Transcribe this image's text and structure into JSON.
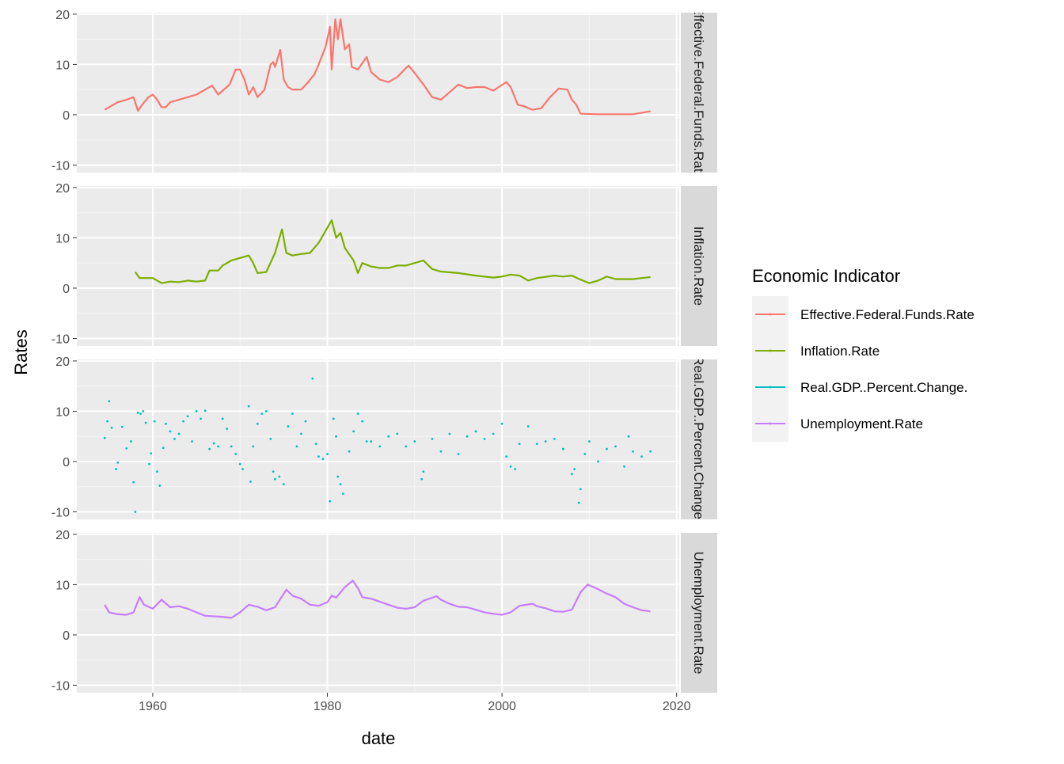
{
  "chart_data": {
    "type": "line",
    "x_label": "date",
    "y_label": "Rates",
    "legend_title": "Economic Indicator",
    "xlim": [
      1951.3,
      2020.3
    ],
    "xticks": [
      1960,
      1980,
      2000,
      2020
    ],
    "xminor": [
      1970,
      1990,
      2010
    ],
    "ylim": [
      -11.5,
      20.3
    ],
    "yticks": [
      -10,
      0,
      10,
      20
    ],
    "yminor": [
      -5,
      5,
      15
    ],
    "grid": true,
    "series": [
      {
        "name": "Effective.Federal.Funds.Rate",
        "type": "line",
        "color": "#f8766d",
        "x": [
          1954.5,
          1955,
          1955.5,
          1956,
          1957,
          1957.8,
          1958.3,
          1958.8,
          1959.5,
          1960,
          1960.5,
          1961,
          1961.5,
          1962,
          1963,
          1964,
          1965,
          1966,
          1966.8,
          1967.5,
          1968,
          1968.8,
          1969.5,
          1970,
          1970.5,
          1971,
          1971.5,
          1972,
          1972.8,
          1973.5,
          1973.8,
          1974,
          1974.6,
          1975,
          1975.5,
          1976,
          1977,
          1977.8,
          1978.5,
          1979,
          1979.8,
          1980.3,
          1980.5,
          1980.9,
          1981.2,
          1981.5,
          1982,
          1982.5,
          1982.8,
          1983.5,
          1984.5,
          1985,
          1986,
          1987,
          1988,
          1989.3,
          1990,
          1991,
          1992,
          1993,
          1994,
          1995,
          1996,
          1997,
          1998,
          1999,
          2000.5,
          2001,
          2001.8,
          2002.5,
          2003.5,
          2004.5,
          2005.5,
          2006.5,
          2007.5,
          2008,
          2008.5,
          2009,
          2011,
          2013,
          2015,
          2016,
          2017
        ],
        "values": [
          1.0,
          1.5,
          2.0,
          2.5,
          3.0,
          3.5,
          0.8,
          2.0,
          3.5,
          4.0,
          3.0,
          1.5,
          1.5,
          2.5,
          3.0,
          3.5,
          4.0,
          5.0,
          5.8,
          4.0,
          4.8,
          6.0,
          9.0,
          9.0,
          7.0,
          4.0,
          5.5,
          3.5,
          5.0,
          10.0,
          10.5,
          9.5,
          12.9,
          7.0,
          5.5,
          5.0,
          5.0,
          6.5,
          8.0,
          10.0,
          13.5,
          17.5,
          9.0,
          19.0,
          15.0,
          19.0,
          13.0,
          14.0,
          9.5,
          9.0,
          11.5,
          8.5,
          7.0,
          6.5,
          7.5,
          9.8,
          8.3,
          6.0,
          3.5,
          3.0,
          4.5,
          6.0,
          5.3,
          5.5,
          5.5,
          4.8,
          6.5,
          5.5,
          2.0,
          1.7,
          1.0,
          1.3,
          3.5,
          5.2,
          5.0,
          3.0,
          2.0,
          0.2,
          0.1,
          0.1,
          0.1,
          0.4,
          0.7
        ]
      },
      {
        "name": "Inflation.Rate",
        "type": "line",
        "color": "#7cae00",
        "x": [
          1958,
          1958.5,
          1959,
          1960,
          1961,
          1962,
          1963,
          1964,
          1965,
          1966,
          1966.5,
          1967.5,
          1968,
          1969,
          1970,
          1971,
          1971.5,
          1972,
          1973,
          1974,
          1974.8,
          1975.3,
          1976,
          1977,
          1978,
          1979,
          1980,
          1980.5,
          1981,
          1981.5,
          1982,
          1983,
          1983.5,
          1984,
          1985,
          1986,
          1987,
          1988,
          1989,
          1990,
          1991,
          1992,
          1993,
          1995,
          1997,
          1999,
          2000,
          2001,
          2002,
          2003,
          2004,
          2006,
          2007,
          2008,
          2009,
          2010,
          2011,
          2012,
          2013,
          2014,
          2015,
          2016,
          2017
        ],
        "values": [
          3.2,
          2.0,
          2.0,
          2.0,
          1.0,
          1.3,
          1.2,
          1.5,
          1.3,
          1.5,
          3.5,
          3.5,
          4.5,
          5.5,
          6.0,
          6.5,
          5.0,
          3.0,
          3.2,
          7.0,
          11.7,
          7.0,
          6.5,
          6.8,
          7.0,
          9.0,
          12.0,
          13.5,
          10.0,
          11.0,
          8.0,
          5.5,
          3.0,
          5.0,
          4.3,
          4.0,
          4.0,
          4.5,
          4.5,
          5.0,
          5.5,
          3.8,
          3.3,
          3.0,
          2.5,
          2.1,
          2.3,
          2.7,
          2.5,
          1.5,
          2.0,
          2.5,
          2.3,
          2.5,
          1.7,
          1.0,
          1.5,
          2.3,
          1.8,
          1.8,
          1.8,
          2.0,
          2.2
        ]
      },
      {
        "name": "Real.GDP..Percent.Change.",
        "type": "scatter",
        "color": "#00bfc4",
        "x": [
          1954.5,
          1954.8,
          1955,
          1955.3,
          1955.8,
          1956,
          1956.5,
          1957,
          1957.5,
          1957.8,
          1958,
          1958.3,
          1958.6,
          1958.9,
          1959.2,
          1959.6,
          1959.8,
          1960.2,
          1960.5,
          1960.8,
          1961.2,
          1961.5,
          1962,
          1962.5,
          1963,
          1963.5,
          1964,
          1964.5,
          1965,
          1965.5,
          1966,
          1966.5,
          1967,
          1967.5,
          1968,
          1968.5,
          1969,
          1969.5,
          1970,
          1970.3,
          1971,
          1971.2,
          1971.5,
          1972,
          1972.5,
          1973,
          1973.5,
          1973.8,
          1974,
          1974.5,
          1975,
          1975.5,
          1976,
          1976.5,
          1977,
          1977.5,
          1978.3,
          1978.7,
          1979,
          1979.5,
          1980,
          1980.3,
          1980.7,
          1981,
          1981.2,
          1981.5,
          1981.8,
          1982.5,
          1983,
          1983.5,
          1984,
          1984.5,
          1985,
          1986,
          1987,
          1988,
          1989,
          1990,
          1990.8,
          1991,
          1992,
          1993,
          1994,
          1995,
          1996,
          1997,
          1998,
          1999,
          2000,
          2000.5,
          2001,
          2001.5,
          2002,
          2003,
          2004,
          2005,
          2006,
          2007,
          2008,
          2008.3,
          2008.8,
          2009,
          2009.5,
          2010,
          2011,
          2012,
          2013,
          2014,
          2014.5,
          2015,
          2016,
          2017
        ],
        "values": [
          4.7,
          8.0,
          12.0,
          6.7,
          -1.5,
          -0.2,
          6.9,
          2.6,
          4.0,
          -4.1,
          -10.0,
          9.7,
          9.5,
          10.0,
          7.7,
          -0.5,
          1.6,
          8.0,
          -2.0,
          -4.8,
          2.7,
          7.5,
          6.0,
          4.5,
          5.5,
          8.0,
          9.0,
          4.0,
          10.0,
          8.5,
          10.1,
          2.5,
          3.6,
          3.0,
          8.5,
          6.5,
          3.0,
          1.5,
          -0.5,
          -1.5,
          11.0,
          -4.0,
          3.0,
          7.5,
          9.5,
          10.0,
          4.5,
          -2.0,
          -3.5,
          -3.0,
          -4.5,
          7.0,
          9.5,
          3.0,
          5.5,
          8.0,
          16.5,
          3.5,
          1.0,
          0.5,
          1.5,
          -7.9,
          8.5,
          5.0,
          -3.0,
          -4.5,
          -6.4,
          2.0,
          6.0,
          9.5,
          8.0,
          4.0,
          4.0,
          3.0,
          5.0,
          5.5,
          3.0,
          4.0,
          -3.5,
          -2.0,
          4.5,
          2.0,
          5.5,
          1.5,
          5.0,
          6.0,
          4.5,
          5.5,
          7.5,
          1.0,
          -1.0,
          -1.5,
          3.5,
          7.0,
          3.5,
          4.0,
          4.5,
          2.5,
          -2.5,
          -1.5,
          -8.2,
          -5.5,
          1.5,
          4.0,
          0.0,
          2.5,
          3.0,
          -1.0,
          5.0,
          2.0,
          1.0,
          2.0
        ]
      },
      {
        "name": "Unemployment.Rate",
        "type": "line",
        "color": "#c77cff",
        "x": [
          1954.5,
          1955,
          1956,
          1957,
          1957.8,
          1958.5,
          1959,
          1960,
          1961,
          1962,
          1963,
          1964,
          1965,
          1966,
          1968,
          1969,
          1970,
          1971,
          1972,
          1973,
          1974,
          1975.3,
          1976,
          1977,
          1978,
          1979,
          1980,
          1980.5,
          1981,
          1982,
          1982.9,
          1983.5,
          1984,
          1985,
          1987,
          1988,
          1989,
          1990,
          1991,
          1992.5,
          1993,
          1994,
          1995,
          1996,
          1997,
          1998,
          1999,
          2000,
          2001,
          2002,
          2003.5,
          2004,
          2005,
          2006,
          2007,
          2008,
          2009,
          2009.8,
          2010.5,
          2011,
          2012,
          2013,
          2014,
          2015,
          2016,
          2017
        ],
        "values": [
          6.0,
          4.5,
          4.1,
          4.0,
          4.5,
          7.5,
          6.0,
          5.2,
          7.0,
          5.5,
          5.7,
          5.2,
          4.5,
          3.8,
          3.6,
          3.4,
          4.5,
          6.0,
          5.6,
          4.9,
          5.5,
          9.0,
          7.8,
          7.2,
          6.0,
          5.8,
          6.5,
          7.8,
          7.4,
          9.5,
          10.8,
          9.3,
          7.5,
          7.2,
          6.0,
          5.4,
          5.2,
          5.5,
          6.8,
          7.7,
          7.0,
          6.2,
          5.6,
          5.5,
          5.0,
          4.5,
          4.2,
          4.0,
          4.5,
          5.8,
          6.2,
          5.7,
          5.3,
          4.7,
          4.6,
          5.0,
          8.5,
          10.0,
          9.5,
          9.1,
          8.2,
          7.5,
          6.2,
          5.5,
          4.9,
          4.7
        ]
      }
    ]
  }
}
